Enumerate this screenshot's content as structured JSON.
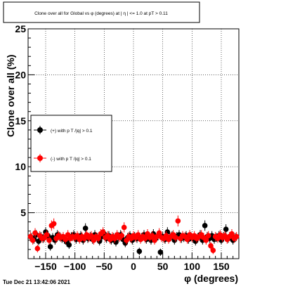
{
  "timestamp": "Tue Dec 21 13:42:06 2021",
  "chart_data": {
    "type": "scatter",
    "title": "Clone  over all for Global vs φ (degrees) at | η | <= 1.0 at pT > 0.11",
    "xlabel": "φ (degrees)",
    "ylabel": "Clone  over all (%)",
    "xlim": [
      -180,
      180
    ],
    "ylim": [
      0,
      25
    ],
    "x_ticks": [
      -150,
      -100,
      -50,
      0,
      50,
      100,
      150
    ],
    "x_tick_labels": [
      "−150",
      "−100",
      "−50",
      "0",
      "50",
      "100",
      "150"
    ],
    "y_ticks": [
      5,
      10,
      15,
      20,
      25
    ],
    "y_tick_labels": [
      "5",
      "10",
      "15",
      "20",
      "25"
    ],
    "grid": true,
    "legend_position": "middle-left",
    "series": [
      {
        "name": "(+) with p T /|q| > 0.1",
        "color": "#000000",
        "x": [
          -174,
          -170,
          -166,
          -162,
          -158,
          -154,
          -150,
          -146,
          -142,
          -138,
          -134,
          -130,
          -126,
          -122,
          -118,
          -114,
          -110,
          -106,
          -102,
          -98,
          -94,
          -90,
          -86,
          -82,
          -78,
          -74,
          -70,
          -66,
          -62,
          -58,
          -54,
          -50,
          -46,
          -42,
          -38,
          -34,
          -30,
          -26,
          -22,
          -18,
          -14,
          -10,
          -6,
          -2,
          2,
          6,
          10,
          14,
          18,
          22,
          26,
          30,
          34,
          38,
          42,
          46,
          50,
          54,
          58,
          62,
          66,
          70,
          74,
          78,
          82,
          86,
          90,
          94,
          98,
          102,
          106,
          110,
          114,
          118,
          122,
          126,
          130,
          134,
          138,
          142,
          146,
          150,
          154,
          158,
          162,
          166,
          170,
          174
        ],
        "y": [
          2.3,
          2.1,
          2.6,
          1.9,
          2.4,
          2.2,
          2.9,
          2.5,
          1.3,
          2.3,
          2.0,
          2.6,
          2.4,
          2.2,
          2.1,
          1.8,
          1.5,
          2.4,
          2.6,
          2.1,
          2.3,
          2.5,
          2.0,
          3.3,
          2.2,
          2.4,
          2.1,
          2.6,
          2.3,
          1.9,
          2.4,
          2.7,
          2.2,
          2.5,
          2.0,
          2.3,
          1.8,
          2.4,
          2.6,
          2.1,
          1.7,
          2.3,
          2.5,
          2.0,
          2.4,
          2.2,
          0.8,
          2.3,
          2.6,
          2.1,
          2.4,
          2.0,
          2.7,
          2.2,
          2.5,
          0.7,
          2.4,
          2.1,
          2.9,
          2.3,
          2.5,
          2.0,
          2.4,
          2.6,
          2.2,
          2.3,
          2.5,
          2.1,
          2.4,
          2.2,
          1.9,
          2.3,
          2.6,
          2.0,
          3.6,
          2.4,
          2.2,
          2.5,
          2.1,
          2.3,
          2.5,
          2.0,
          2.4,
          3.2,
          2.2,
          2.4,
          2.0,
          2.3
        ]
      },
      {
        "name": "(-) with p T /|q| > 0.1",
        "color": "#ff0000",
        "x": [
          -176,
          -172,
          -168,
          -164,
          -160,
          -156,
          -152,
          -148,
          -144,
          -140,
          -136,
          -132,
          -128,
          -124,
          -120,
          -116,
          -112,
          -108,
          -104,
          -100,
          -96,
          -92,
          -88,
          -84,
          -80,
          -76,
          -72,
          -68,
          -64,
          -60,
          -56,
          -52,
          -48,
          -44,
          -40,
          -36,
          -32,
          -28,
          -24,
          -20,
          -16,
          -12,
          -8,
          -4,
          0,
          4,
          8,
          12,
          16,
          20,
          24,
          28,
          32,
          36,
          40,
          44,
          48,
          52,
          56,
          60,
          64,
          68,
          72,
          76,
          80,
          84,
          88,
          92,
          96,
          100,
          104,
          108,
          112,
          116,
          120,
          124,
          128,
          132,
          136,
          140,
          144,
          148,
          152,
          156,
          160,
          164,
          168,
          172,
          176
        ],
        "y": [
          2.4,
          2.0,
          2.8,
          1.1,
          2.5,
          2.2,
          2.3,
          2.6,
          2.0,
          3.6,
          3.8,
          2.2,
          2.5,
          2.3,
          2.4,
          2.1,
          2.6,
          2.2,
          2.4,
          2.3,
          2.5,
          2.1,
          2.4,
          2.2,
          2.6,
          2.3,
          2.5,
          2.0,
          2.4,
          2.2,
          2.7,
          2.9,
          2.3,
          2.5,
          2.1,
          2.4,
          2.2,
          2.6,
          2.3,
          2.5,
          3.4,
          2.0,
          2.4,
          2.2,
          2.5,
          2.3,
          2.6,
          2.1,
          2.4,
          2.2,
          2.7,
          2.3,
          2.5,
          2.0,
          2.4,
          2.8,
          2.3,
          2.2,
          2.5,
          2.1,
          2.4,
          2.6,
          2.3,
          4.1,
          2.2,
          2.5,
          2.4,
          2.1,
          2.6,
          2.3,
          2.5,
          2.2,
          2.4,
          2.6,
          2.3,
          2.0,
          2.5,
          1.4,
          0.9,
          2.4,
          2.2,
          2.6,
          2.3,
          2.5,
          2.1,
          2.4,
          2.7,
          2.2,
          2.4
        ]
      }
    ]
  }
}
